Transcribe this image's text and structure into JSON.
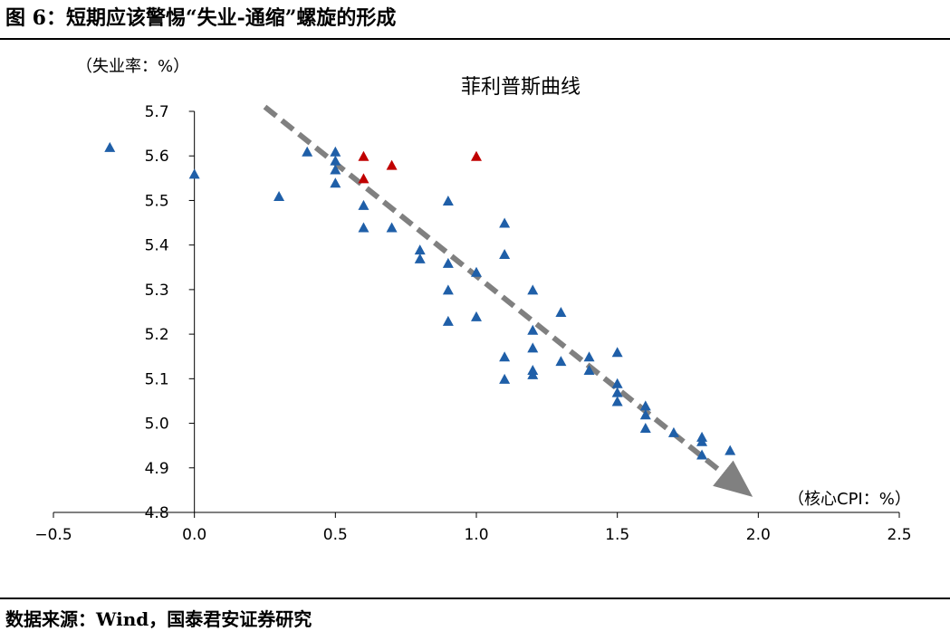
{
  "figure_title": "图 6：短期应该警惕“失业-通缩”螺旋的形成",
  "source_note": "数据来源：Wind，国泰君安证券研究",
  "chart_data": {
    "type": "scatter",
    "title": "菲利普斯曲线",
    "xlabel": "（核心CPI：%）",
    "ylabel": "（失业率：%）",
    "xlim": [
      -0.5,
      2.5
    ],
    "ylim": [
      4.8,
      5.7
    ],
    "x_ticks": [
      "−0.5",
      "0.0",
      "0.5",
      "1.0",
      "1.5",
      "2.0",
      "2.5"
    ],
    "y_ticks": [
      "4.8",
      "4.9",
      "5.0",
      "5.1",
      "5.2",
      "5.3",
      "5.4",
      "5.5",
      "5.6",
      "5.7"
    ],
    "series": [
      {
        "name": "blue",
        "color": "#1f5fa8",
        "points": [
          [
            -0.3,
            5.62
          ],
          [
            0.0,
            5.56
          ],
          [
            0.3,
            5.51
          ],
          [
            0.4,
            5.61
          ],
          [
            0.5,
            5.61
          ],
          [
            0.5,
            5.59
          ],
          [
            0.5,
            5.57
          ],
          [
            0.5,
            5.54
          ],
          [
            0.6,
            5.49
          ],
          [
            0.6,
            5.44
          ],
          [
            0.7,
            5.44
          ],
          [
            0.8,
            5.39
          ],
          [
            0.8,
            5.37
          ],
          [
            0.9,
            5.5
          ],
          [
            0.9,
            5.36
          ],
          [
            0.9,
            5.3
          ],
          [
            0.9,
            5.23
          ],
          [
            1.0,
            5.34
          ],
          [
            1.0,
            5.24
          ],
          [
            1.1,
            5.45
          ],
          [
            1.1,
            5.38
          ],
          [
            1.1,
            5.15
          ],
          [
            1.1,
            5.1
          ],
          [
            1.2,
            5.3
          ],
          [
            1.2,
            5.21
          ],
          [
            1.2,
            5.17
          ],
          [
            1.2,
            5.12
          ],
          [
            1.2,
            5.11
          ],
          [
            1.3,
            5.25
          ],
          [
            1.3,
            5.14
          ],
          [
            1.4,
            5.15
          ],
          [
            1.4,
            5.12
          ],
          [
            1.5,
            5.16
          ],
          [
            1.5,
            5.09
          ],
          [
            1.5,
            5.07
          ],
          [
            1.5,
            5.05
          ],
          [
            1.6,
            5.04
          ],
          [
            1.6,
            5.02
          ],
          [
            1.6,
            4.99
          ],
          [
            1.7,
            4.98
          ],
          [
            1.8,
            4.97
          ],
          [
            1.8,
            4.96
          ],
          [
            1.8,
            4.93
          ],
          [
            1.9,
            4.94
          ]
        ]
      },
      {
        "name": "red",
        "color": "#c00000",
        "points": [
          [
            0.6,
            5.6
          ],
          [
            0.6,
            5.55
          ],
          [
            0.7,
            5.58
          ],
          [
            1.0,
            5.6
          ]
        ]
      }
    ],
    "trend_arrow": {
      "from": [
        0.25,
        5.71
      ],
      "to": [
        1.95,
        4.85
      ],
      "color": "#808080"
    }
  }
}
